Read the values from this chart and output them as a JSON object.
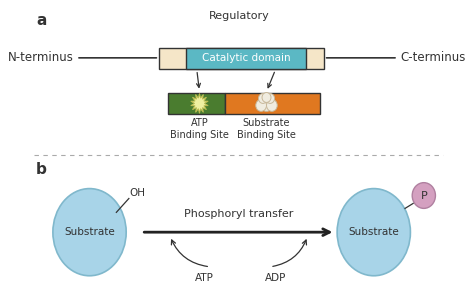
{
  "bg_color": "#ffffff",
  "panel_a_label": "a",
  "panel_b_label": "b",
  "regulatory_text": "Regulatory",
  "n_terminus": "N-terminus",
  "c_terminus": "C-terminus",
  "catalytic_domain": "Catalytic domain",
  "atp_binding": "ATP\nBinding Site",
  "substrate_binding": "Substrate\nBinding Site",
  "phosphoryl_transfer": "Phosphoryl transfer",
  "substrate_text": "Substrate",
  "atp_text": "ATP",
  "adp_text": "ADP",
  "oh_text": "OH",
  "p_text": "P",
  "color_beige": "#f5e6c8",
  "color_teal": "#5bb8c4",
  "color_green": "#4a7c2f",
  "color_orange": "#e07820",
  "color_light_blue": "#a8d4e8",
  "color_pink": "#d4a0c0",
  "color_dashed": "#aaaaaa",
  "color_dark": "#333333",
  "color_arrow": "#222222"
}
